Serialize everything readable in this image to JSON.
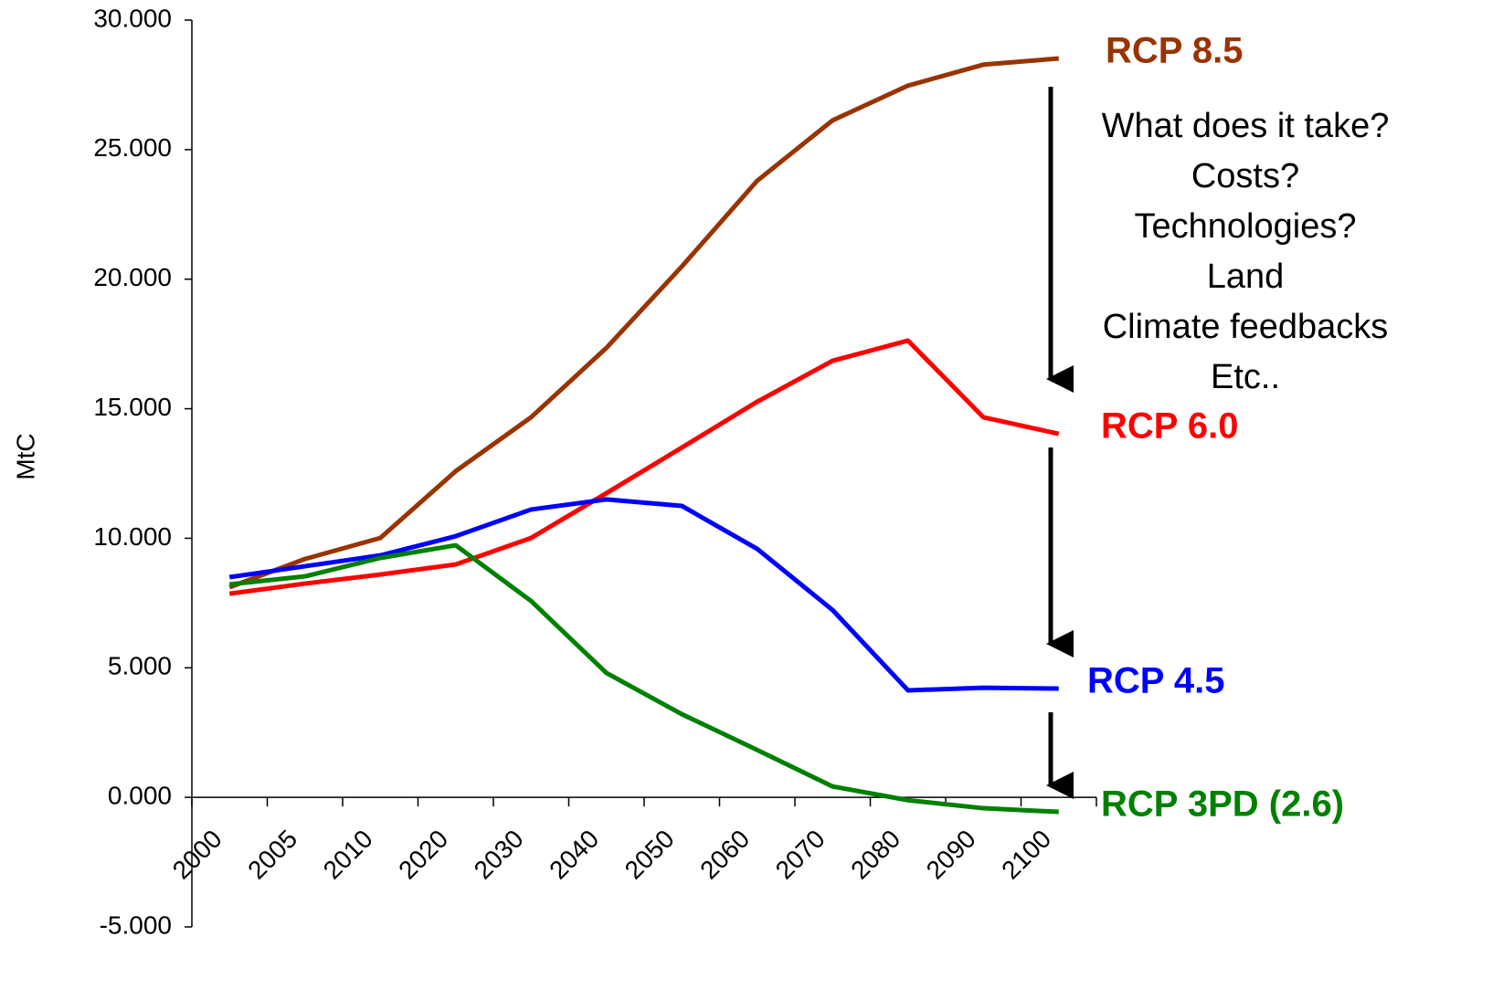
{
  "chart_data": {
    "type": "line",
    "y_label": "MtC",
    "categories": [
      "2000",
      "2005",
      "2010",
      "2020",
      "2030",
      "2040",
      "2050",
      "2060",
      "2070",
      "2080",
      "2090",
      "2100"
    ],
    "series": [
      {
        "name": "RCP 8.5",
        "color": "#993300",
        "values": [
          8110,
          9200,
          10010,
          12590,
          14670,
          17350,
          20490,
          23800,
          26130,
          27470,
          28280,
          28520
        ]
      },
      {
        "name": "RCP 6.0",
        "color": "#ff0000",
        "values": [
          7860,
          8250,
          8600,
          8990,
          10010,
          11740,
          13500,
          15270,
          16850,
          17630,
          14670,
          14030
        ]
      },
      {
        "name": "RCP 4.5",
        "color": "#0000ff",
        "values": [
          8500,
          8920,
          9340,
          10080,
          11110,
          11500,
          11250,
          9590,
          7230,
          4130,
          4230,
          4200
        ]
      },
      {
        "name": "RCP 3PD (2.6)",
        "color": "#008000",
        "values": [
          8220,
          8530,
          9240,
          9730,
          7580,
          4800,
          3210,
          1830,
          420,
          -110,
          -420,
          -560
        ]
      }
    ],
    "ylim": [
      -5000,
      30000
    ],
    "yticks": [
      {
        "value": -5000,
        "label": "-5.000"
      },
      {
        "value": 0,
        "label": "0.000"
      },
      {
        "value": 5000,
        "label": "5.000"
      },
      {
        "value": 10000,
        "label": "10.000"
      },
      {
        "value": 15000,
        "label": "15.000"
      },
      {
        "value": 20000,
        "label": "20.000"
      },
      {
        "value": 25000,
        "label": "25.000"
      },
      {
        "value": 30000,
        "label": "30.000"
      }
    ],
    "annotation": [
      "What does it take?",
      "Costs?",
      "Technologies?",
      "Land",
      "Climate feedbacks",
      "Etc.."
    ]
  }
}
